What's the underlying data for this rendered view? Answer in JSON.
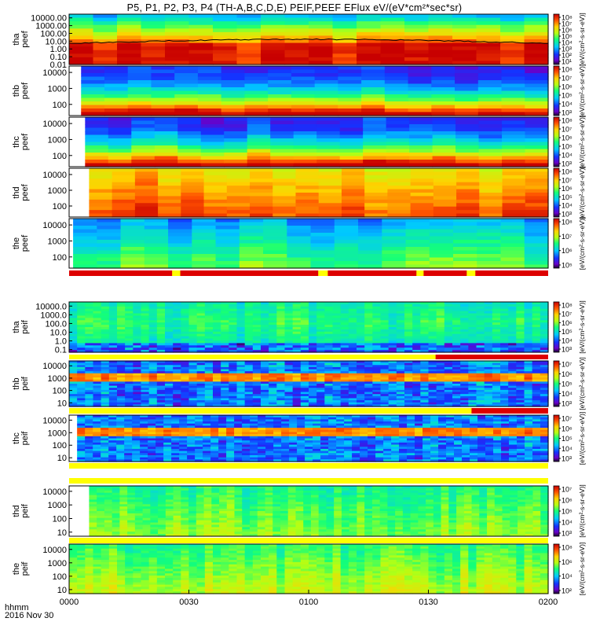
{
  "title": "P5, P1, P2, P3, P4 (TH-A,B,C,D,E) PEIF,PEEF EFlux eV/(eV*cm²*sec*sr)",
  "corner": {
    "hhmm": "hhmm",
    "date": "2016 Nov 30"
  },
  "cbar_unit_label": "[eV/(cm²-s-sr-eV)]",
  "colors": {
    "bar_red": "#dd0000",
    "bar_yellow": "#ffff00",
    "axis": "#000000"
  },
  "chart_data": {
    "type": "heatmap",
    "xaxis": {
      "ticks": [
        "0000",
        "0030",
        "0100",
        "0130",
        "0200"
      ],
      "range": [
        "00:00",
        "02:00"
      ]
    },
    "panels": [
      {
        "id": "tha-peef",
        "ylabel": [
          "tha",
          "peef"
        ],
        "yscale": "log",
        "yticks": [
          "10000.00",
          "1000.00",
          "100.00",
          "10.00",
          "1.00",
          "0.10",
          "0.01"
        ],
        "ylim": [
          0.01,
          30000
        ],
        "cbar_ticks": [
          "10⁸",
          "10⁷",
          "10⁶",
          "10⁵",
          "10⁴",
          "10³",
          "10²",
          "10¹"
        ],
        "cbar_range_exp": [
          1,
          8
        ],
        "data_start": "00:00",
        "has_line": true
      },
      {
        "id": "thb-peef",
        "ylabel": [
          "thb",
          "peef"
        ],
        "yscale": "log",
        "yticks": [
          "10000",
          "1000",
          "100"
        ],
        "ylim": [
          20,
          25000
        ],
        "cbar_ticks": [
          "10⁸",
          "10⁷",
          "10⁶",
          "10⁵",
          "10⁴",
          "10³"
        ],
        "cbar_range_exp": [
          3,
          8
        ],
        "data_start": "00:03"
      },
      {
        "id": "thc-peef",
        "ylabel": [
          "thc",
          "peef"
        ],
        "yscale": "log",
        "yticks": [
          "10000",
          "1000",
          "100"
        ],
        "ylim": [
          20,
          25000
        ],
        "cbar_ticks": [
          "10⁸",
          "10⁷",
          "10⁶",
          "10⁵",
          "10⁴",
          "10³"
        ],
        "cbar_range_exp": [
          3,
          8
        ],
        "data_start": "00:04"
      },
      {
        "id": "thd-peef",
        "ylabel": [
          "thd",
          "peef"
        ],
        "yscale": "log",
        "yticks": [
          "10000",
          "1000",
          "100"
        ],
        "ylim": [
          20,
          25000
        ],
        "cbar_ticks": [
          "10⁸",
          "10⁷",
          "10⁶",
          "10⁵",
          "10⁴",
          "10³"
        ],
        "cbar_range_exp": [
          3,
          8
        ],
        "data_start": "00:05"
      },
      {
        "id": "the-peef",
        "ylabel": [
          "the",
          "peef"
        ],
        "yscale": "log",
        "yticks": [
          "10000",
          "1000",
          "100"
        ],
        "ylim": [
          20,
          25000
        ],
        "cbar_ticks": [
          "10⁸",
          "10⁷",
          "10⁶",
          "10⁵"
        ],
        "cbar_range_exp": [
          5,
          8
        ],
        "data_start": "00:01"
      },
      {
        "id": "tha-peif",
        "ylabel": [
          "tha",
          "peif"
        ],
        "yscale": "log",
        "yticks": [
          "10000.0",
          "1000.0",
          "100.0",
          "10.0",
          "1.0",
          "0.1"
        ],
        "ylim": [
          0.05,
          30000
        ],
        "cbar_ticks": [
          "10⁸",
          "10⁷",
          "10⁶",
          "10⁵",
          "10⁴",
          "10³"
        ],
        "cbar_range_exp": [
          3,
          8
        ],
        "data_start": "00:00"
      },
      {
        "id": "thb-peif",
        "ylabel": [
          "thb",
          "peif"
        ],
        "yscale": "log",
        "yticks": [
          "10000",
          "1000",
          "100",
          "10"
        ],
        "ylim": [
          5,
          25000
        ],
        "cbar_ticks": [
          "10⁷",
          "10⁶",
          "10⁵",
          "10⁴",
          "10³"
        ],
        "cbar_range_exp": [
          3,
          7
        ],
        "data_start": "00:00"
      },
      {
        "id": "thc-peif",
        "ylabel": [
          "thc",
          "peif"
        ],
        "yscale": "log",
        "yticks": [
          "10000",
          "1000",
          "100",
          "10"
        ],
        "ylim": [
          5,
          25000
        ],
        "cbar_ticks": [
          "10⁷",
          "10⁶",
          "10⁵",
          "10⁴",
          "10³"
        ],
        "cbar_range_exp": [
          3,
          7
        ],
        "data_start": "00:02"
      },
      {
        "id": "thd-peif",
        "ylabel": [
          "thd",
          "peif"
        ],
        "yscale": "log",
        "yticks": [
          "10000",
          "1000",
          "100",
          "10"
        ],
        "ylim": [
          5,
          25000
        ],
        "cbar_ticks": [
          "10⁷",
          "10⁶",
          "10⁵",
          "10⁴",
          "10³"
        ],
        "cbar_range_exp": [
          3,
          7
        ],
        "data_start": "00:05"
      },
      {
        "id": "the-peif",
        "ylabel": [
          "the",
          "peif"
        ],
        "yscale": "log",
        "yticks": [
          "10000",
          "1000",
          "100",
          "10"
        ],
        "ylim": [
          5,
          25000
        ],
        "cbar_ticks": [
          "10⁸",
          "10⁶",
          "10⁴",
          "10²"
        ],
        "cbar_range_exp": [
          2,
          8
        ],
        "data_start": "00:00"
      }
    ]
  }
}
